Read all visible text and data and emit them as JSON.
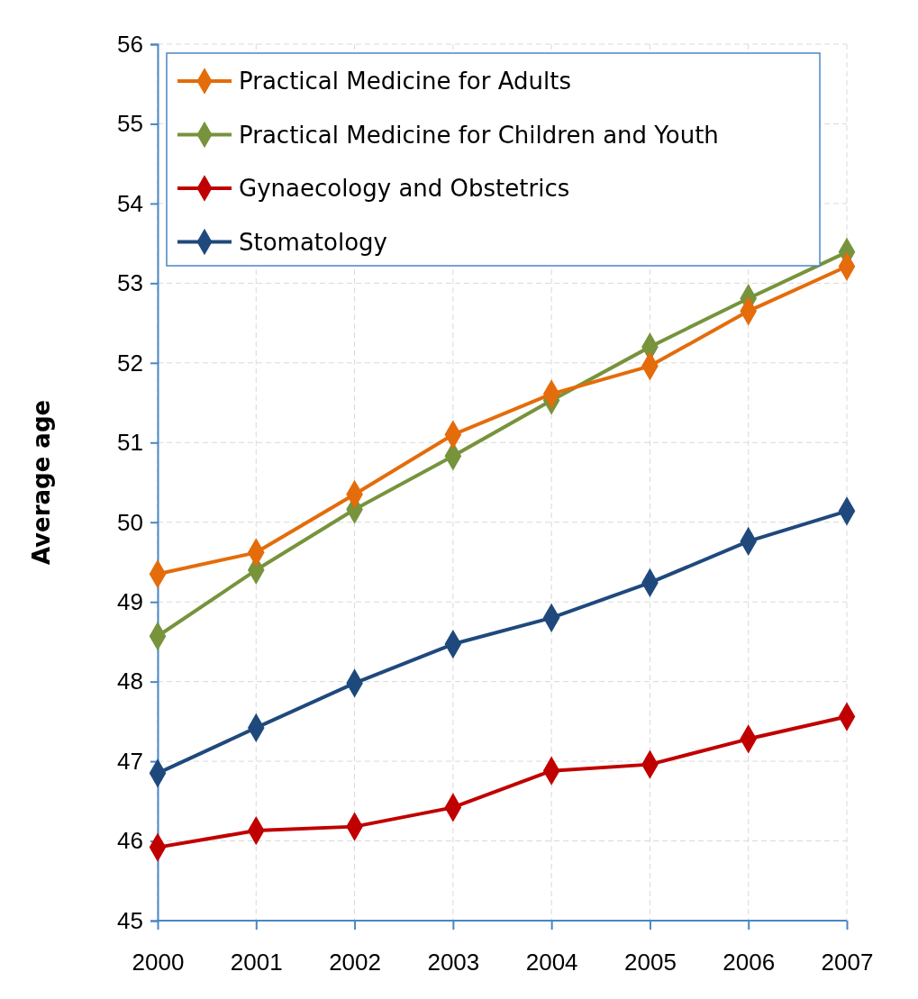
{
  "chart_data": {
    "type": "line",
    "ylabel": "Average age",
    "categories": [
      "2000",
      "2001",
      "2002",
      "2003",
      "2004",
      "2005",
      "2006",
      "2007"
    ],
    "ylim": [
      45,
      56
    ],
    "yticks": [
      45,
      46,
      47,
      48,
      49,
      50,
      51,
      52,
      53,
      54,
      55,
      56
    ],
    "grid": true,
    "legend": "top left",
    "marker": "diamond",
    "line_style": "solid",
    "series": [
      {
        "name": "Practical Medicine for Adults",
        "color": "#e46c0a",
        "values": [
          49.35,
          49.62,
          50.35,
          51.1,
          51.61,
          51.96,
          52.65,
          53.21
        ]
      },
      {
        "name": "Practical Medicine for Children and Youth",
        "color": "#77933c",
        "values": [
          48.57,
          49.4,
          50.16,
          50.83,
          51.53,
          52.2,
          52.81,
          53.39
        ]
      },
      {
        "name": "Gynaecology and Obstetrics",
        "color": "#c00000",
        "values": [
          45.92,
          46.13,
          46.18,
          46.42,
          46.88,
          46.96,
          47.28,
          47.56
        ]
      },
      {
        "name": "Stomatology",
        "color": "#1f497d",
        "values": [
          46.85,
          47.42,
          47.98,
          48.47,
          48.8,
          49.24,
          49.76,
          50.14
        ]
      }
    ]
  }
}
